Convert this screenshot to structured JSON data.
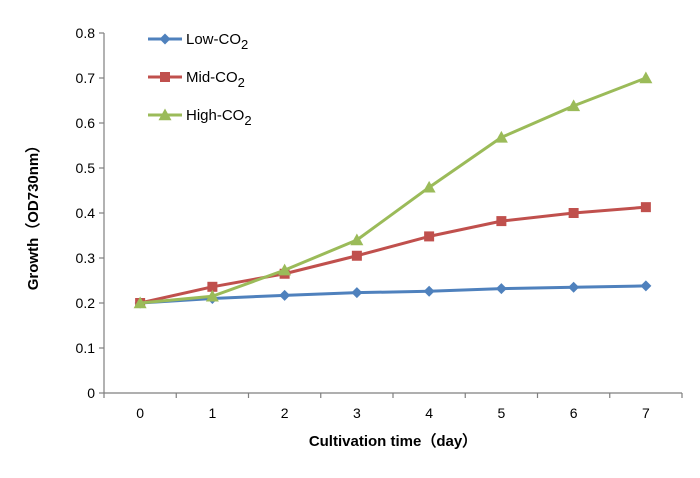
{
  "chart_data": {
    "type": "line",
    "xlabel": "Cultivation time（day）",
    "ylabel": "Growth（OD730nm）",
    "x": [
      0,
      1,
      2,
      3,
      4,
      5,
      6,
      7
    ],
    "xlim": [
      0,
      7
    ],
    "ylim": [
      0,
      0.8
    ],
    "y_ticks": [
      "0",
      "0.1",
      "0.2",
      "0.3",
      "0.4",
      "0.5",
      "0.6",
      "0.7",
      "0.8"
    ],
    "x_ticks": [
      "0",
      "1",
      "2",
      "3",
      "4",
      "5",
      "6",
      "7"
    ],
    "grid": false,
    "legend_position": "top-left",
    "series": [
      {
        "name": "Low-CO2",
        "name_base": "Low-CO",
        "name_sub": "2",
        "color": "#4f81bd",
        "marker": "diamond",
        "values": [
          0.2,
          0.21,
          0.217,
          0.223,
          0.226,
          0.232,
          0.235,
          0.238
        ]
      },
      {
        "name": "Mid-CO2",
        "name_base": "Mid-CO",
        "name_sub": "2",
        "color": "#c0504d",
        "marker": "square",
        "values": [
          0.2,
          0.236,
          0.265,
          0.305,
          0.348,
          0.382,
          0.4,
          0.413
        ]
      },
      {
        "name": "High-CO2",
        "name_base": "High-CO",
        "name_sub": "2",
        "color": "#9bbb59",
        "marker": "triangle",
        "values": [
          0.2,
          0.215,
          0.273,
          0.34,
          0.457,
          0.568,
          0.638,
          0.7
        ]
      }
    ]
  }
}
